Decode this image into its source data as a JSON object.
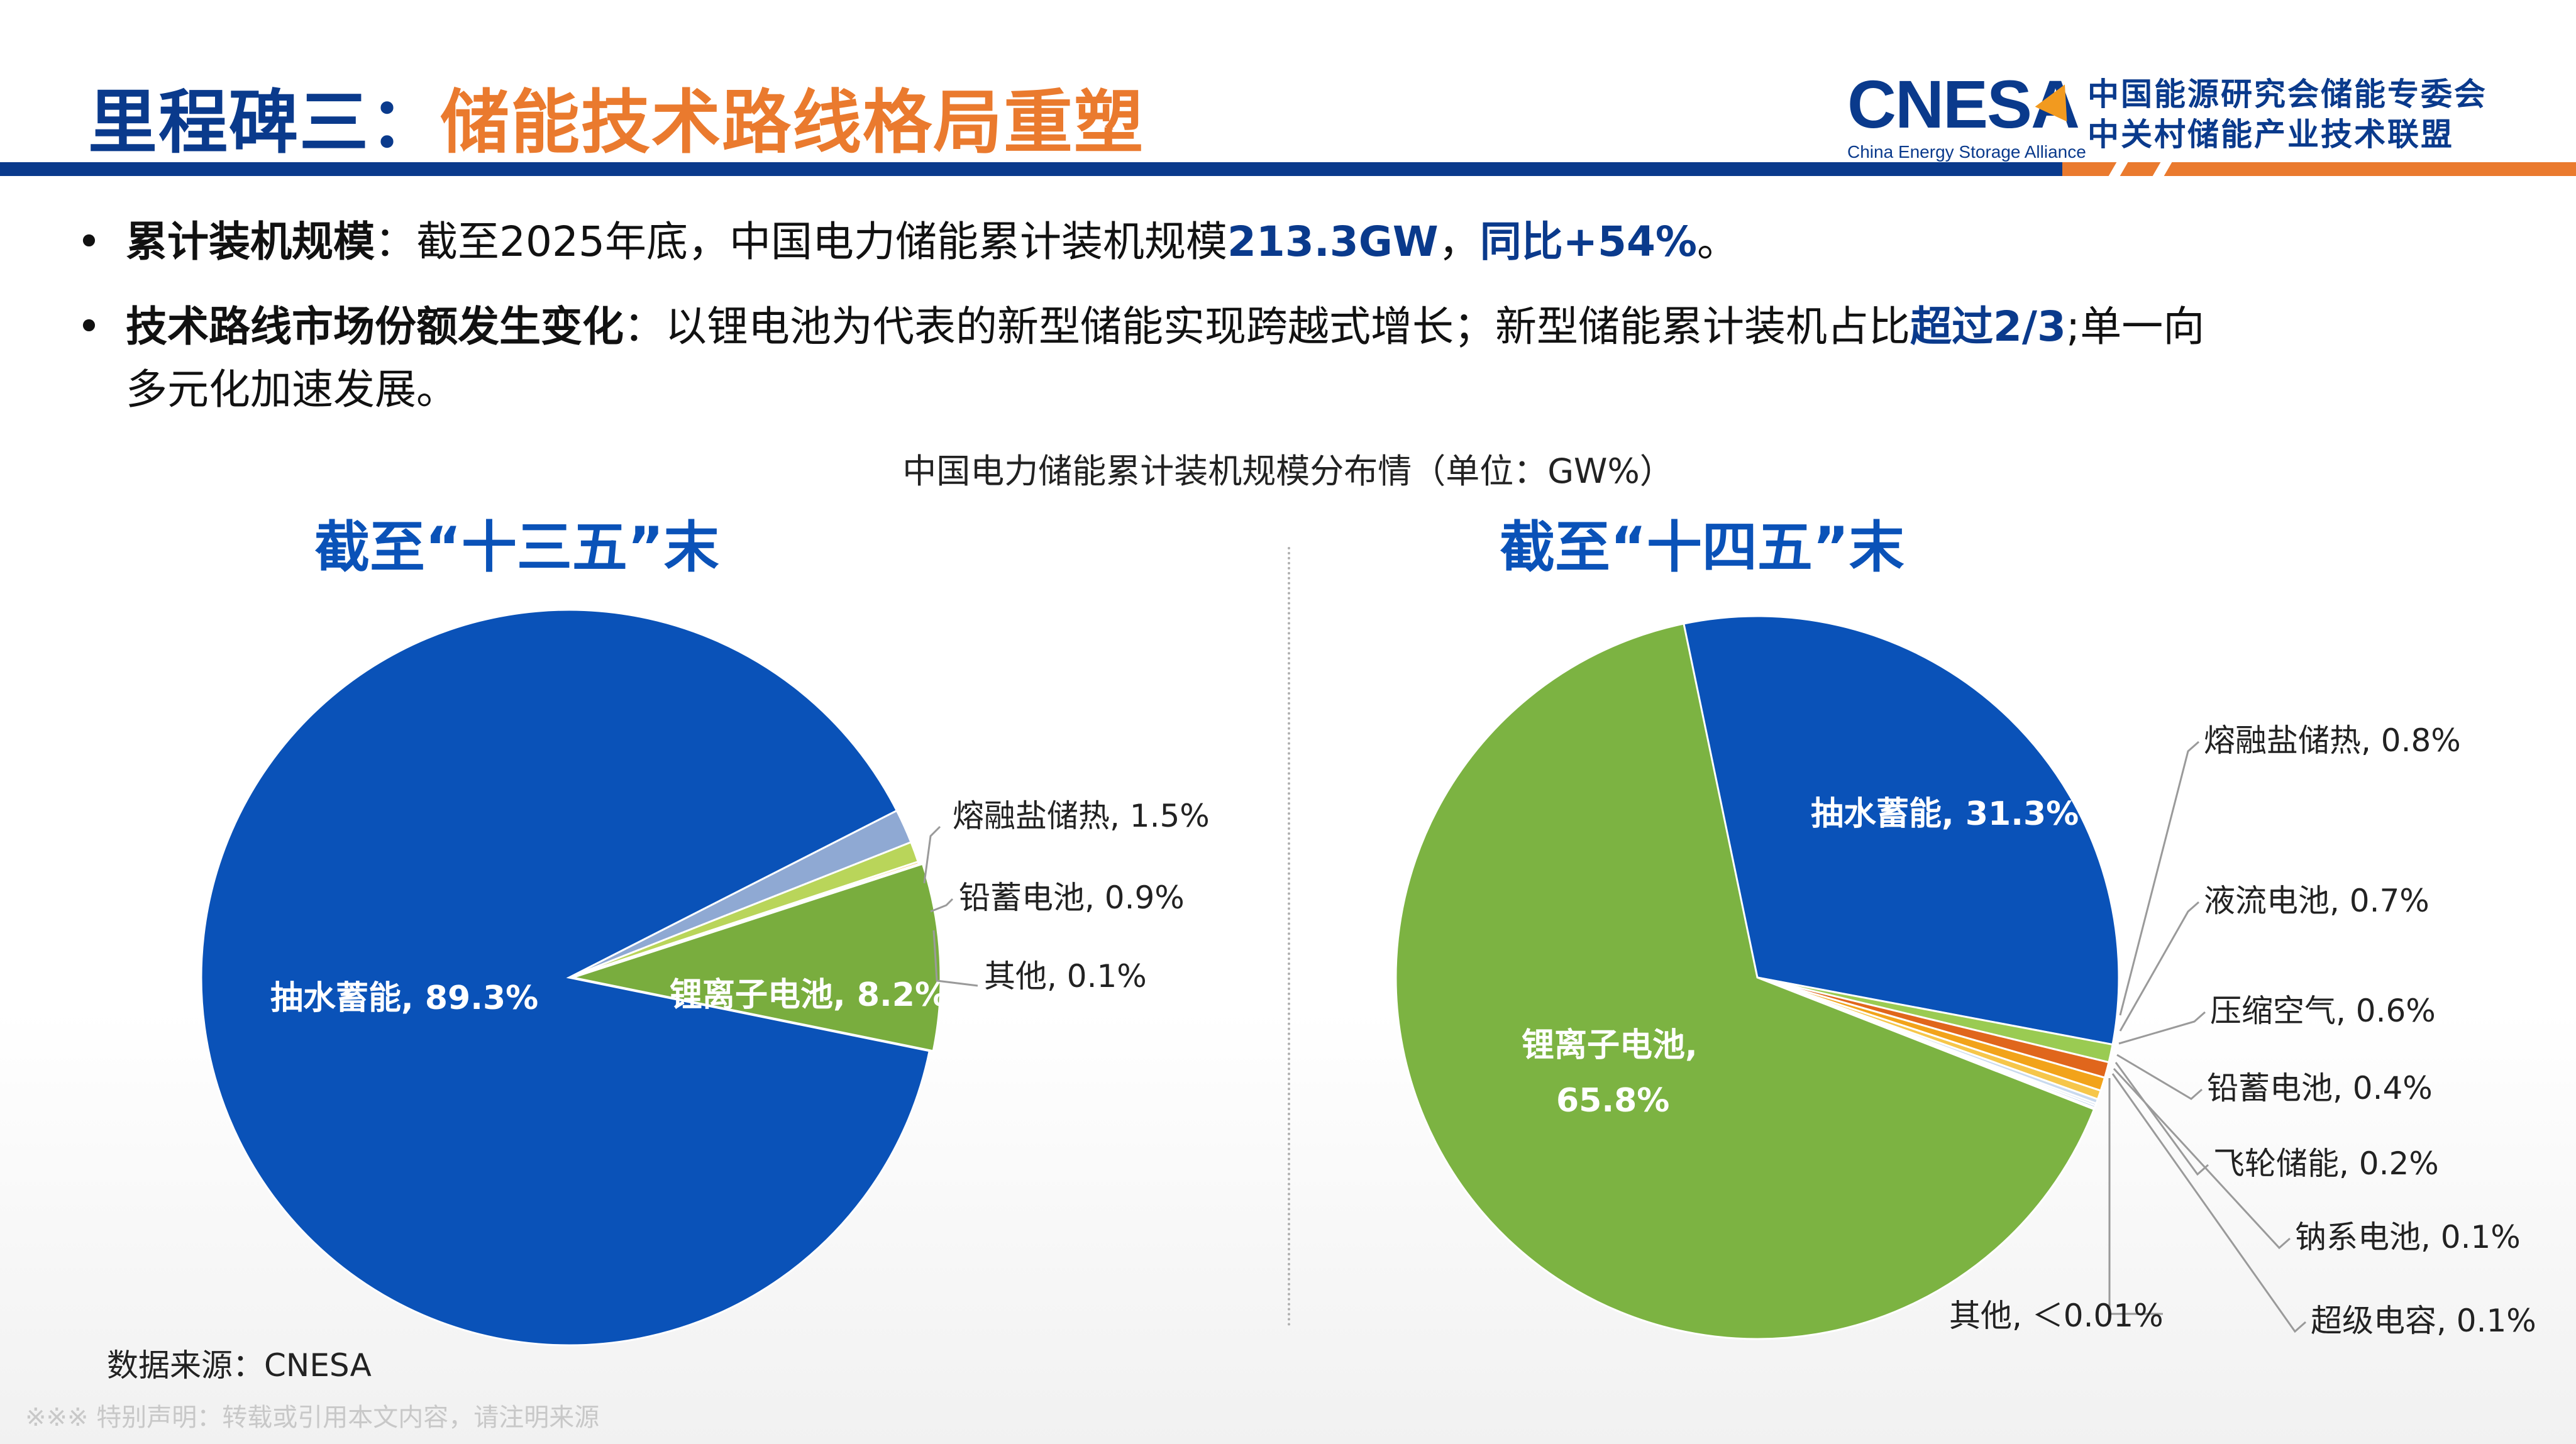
{
  "title": {
    "part1": "里程碑三：",
    "part2": "储能技术路线格局重塑"
  },
  "logo": {
    "wordmark": "CNESA",
    "subtitle": "China Energy Storage Alliance",
    "cn_line1": "中国能源研究会储能专委会",
    "cn_line2": "中关村储能产业技术联盟"
  },
  "bullets": [
    {
      "label": "累计装机规模",
      "text_a": "：截至2025年底，中国电力储能累计装机规模",
      "hl_a": "213.3GW",
      "text_b": "，",
      "hl_b": "同比+54%",
      "text_c": "。"
    },
    {
      "label": "技术路线市场份额发生变化",
      "text_a": "：以锂电池为代表的新型储能实现跨越式增长；新型储能累计装机占比",
      "hl_a": "超过2/3",
      "text_b": ";单一向",
      "line2": "多元化加速发展。"
    }
  ],
  "chart_data": [
    {
      "type": "pie",
      "title": "截至“十三五”末",
      "main_title": "中国电力储能累计装机规模分布情（单位：GW%）",
      "slices": [
        {
          "name": "抽水蓄能",
          "value": 89.3,
          "label": "抽水蓄能, 89.3%",
          "color": "#0a52b8",
          "inside": true
        },
        {
          "name": "熔融盐储热",
          "value": 1.5,
          "label": "熔融盐储热, 1.5%",
          "color": "#8fa9d3",
          "inside": false
        },
        {
          "name": "铅蓄电池",
          "value": 0.9,
          "label": "铅蓄电池, 0.9%",
          "color": "#b9d55a",
          "inside": false
        },
        {
          "name": "其他",
          "value": 0.1,
          "label": "其他, 0.1%",
          "color": "#f0c040",
          "inside": false
        },
        {
          "name": "锂离子电池",
          "value": 8.2,
          "label": "锂离子电池, 8.2%",
          "color": "#79ad3e",
          "inside": true
        }
      ]
    },
    {
      "type": "pie",
      "title": "截至“十四五”末",
      "slices": [
        {
          "name": "抽水蓄能",
          "value": 31.3,
          "label": "抽水蓄能, 31.3%",
          "color": "#0a52b8",
          "inside": true
        },
        {
          "name": "熔融盐储热",
          "value": 0.8,
          "label": "熔融盐储热, 0.8%",
          "color": "#9acb52",
          "inside": false
        },
        {
          "name": "液流电池",
          "value": 0.7,
          "label": "液流电池, 0.7%",
          "color": "#e0661c",
          "inside": false
        },
        {
          "name": "压缩空气",
          "value": 0.6,
          "label": "压缩空气, 0.6%",
          "color": "#f2a31a",
          "inside": false
        },
        {
          "name": "铅蓄电池",
          "value": 0.4,
          "label": "铅蓄电池, 0.4%",
          "color": "#f6c64a",
          "inside": false
        },
        {
          "name": "飞轮储能",
          "value": 0.2,
          "label": "飞轮储能, 0.2%",
          "color": "#c8d9ee",
          "inside": false
        },
        {
          "name": "钠系电池",
          "value": 0.1,
          "label": "钠系电池, 0.1%",
          "color": "#a8c3e6",
          "inside": false
        },
        {
          "name": "超级电容",
          "value": 0.1,
          "label": "超级电容, 0.1%",
          "color": "#8ab0dc",
          "inside": false
        },
        {
          "name": "其他",
          "value": 0.0,
          "label": "其他, ＜0.01%",
          "color": "#cccccc",
          "inside": false
        },
        {
          "name": "锂离子电池",
          "value": 65.8,
          "label_line1": "锂离子电池,",
          "label_line2": "65.8%",
          "color": "#7cb342",
          "inside": true
        }
      ]
    }
  ],
  "source": "数据来源：CNESA",
  "disclaimer": "※※※ 特别声明：转载或引用本文内容，请注明来源"
}
